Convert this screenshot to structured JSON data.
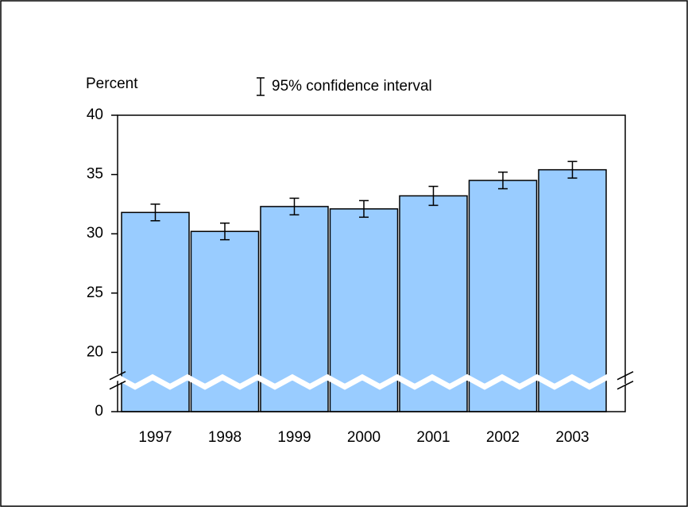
{
  "chart_data": {
    "type": "bar",
    "y_label": "Percent",
    "legend_label": "95% confidence interval",
    "categories": [
      "1997",
      "1998",
      "1999",
      "2000",
      "2001",
      "2002",
      "2003"
    ],
    "values": [
      31.8,
      30.2,
      32.3,
      32.1,
      33.2,
      34.5,
      35.4
    ],
    "errors": [
      0.7,
      0.7,
      0.7,
      0.7,
      0.8,
      0.7,
      0.7
    ],
    "color": "#99ccff",
    "ylim": [
      0,
      40
    ],
    "yticks": [
      0,
      20,
      25,
      30,
      35,
      40
    ],
    "axis_break": true
  }
}
